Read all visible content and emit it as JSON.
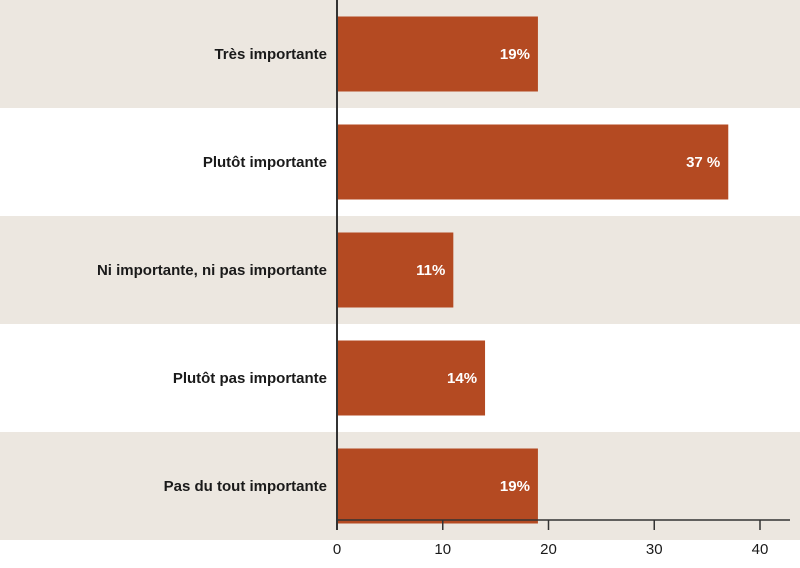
{
  "colors": {
    "bar": "#B44A22",
    "band": "#ECE7E0",
    "axis": "#333333",
    "label_text": "#1a1a1a",
    "value_text": "#ffffff"
  },
  "chart_data": {
    "type": "bar",
    "orientation": "horizontal",
    "title": "",
    "xlabel": "",
    "ylabel": "",
    "categories": [
      "Très importante",
      "Plutôt importante",
      "Ni importante, ni pas importante",
      "Plutôt pas importante",
      "Pas du tout importante"
    ],
    "values": [
      19,
      37,
      11,
      14,
      19
    ],
    "data_labels": [
      "19%",
      "37 %",
      "11%",
      "14%",
      "19%"
    ],
    "xlim": [
      0,
      40
    ],
    "xticks": [
      0,
      10,
      20,
      30,
      40
    ],
    "xtick_labels": [
      "0",
      "10",
      "20",
      "30",
      "40"
    ],
    "grid": false,
    "legend": "none",
    "alternating_bands": true
  }
}
